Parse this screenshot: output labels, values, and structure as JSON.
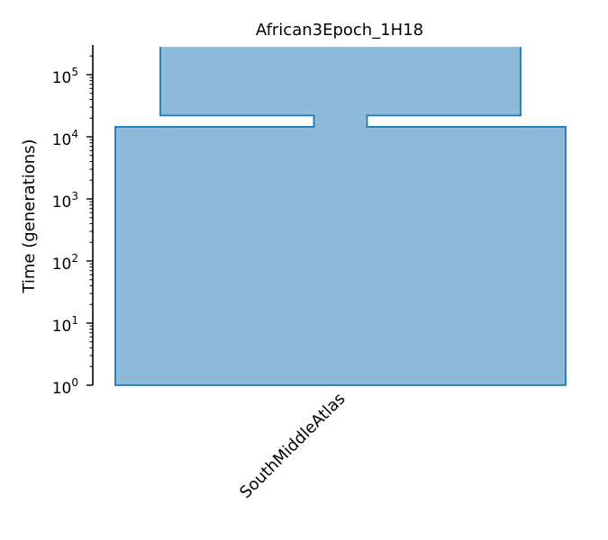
{
  "chart_data": {
    "type": "area",
    "title": "African3Epoch_1H18",
    "xlabel": "",
    "ylabel": "Time (generations)",
    "y_scale": "log",
    "ylim": [
      1,
      280000
    ],
    "y_ticks": [
      {
        "base": "10",
        "exp": "0"
      },
      {
        "base": "10",
        "exp": "1"
      },
      {
        "base": "10",
        "exp": "2"
      },
      {
        "base": "10",
        "exp": "3"
      },
      {
        "base": "10",
        "exp": "4"
      },
      {
        "base": "10",
        "exp": "5"
      }
    ],
    "categories": [
      "SouthMiddleAtlas"
    ],
    "deme": {
      "name": "SouthMiddleAtlas",
      "epochs": [
        {
          "start_time": 280000,
          "end_time": 22000,
          "relative_width": 0.8
        },
        {
          "start_time": 22000,
          "end_time": 14500,
          "relative_width": 0.118
        },
        {
          "start_time": 14500,
          "end_time": 1,
          "relative_width": 1.0
        }
      ]
    },
    "colors": {
      "fill": "#8db9da",
      "stroke": "#1f77b4",
      "axis": "#000000"
    },
    "grid": false,
    "legend": "none"
  }
}
